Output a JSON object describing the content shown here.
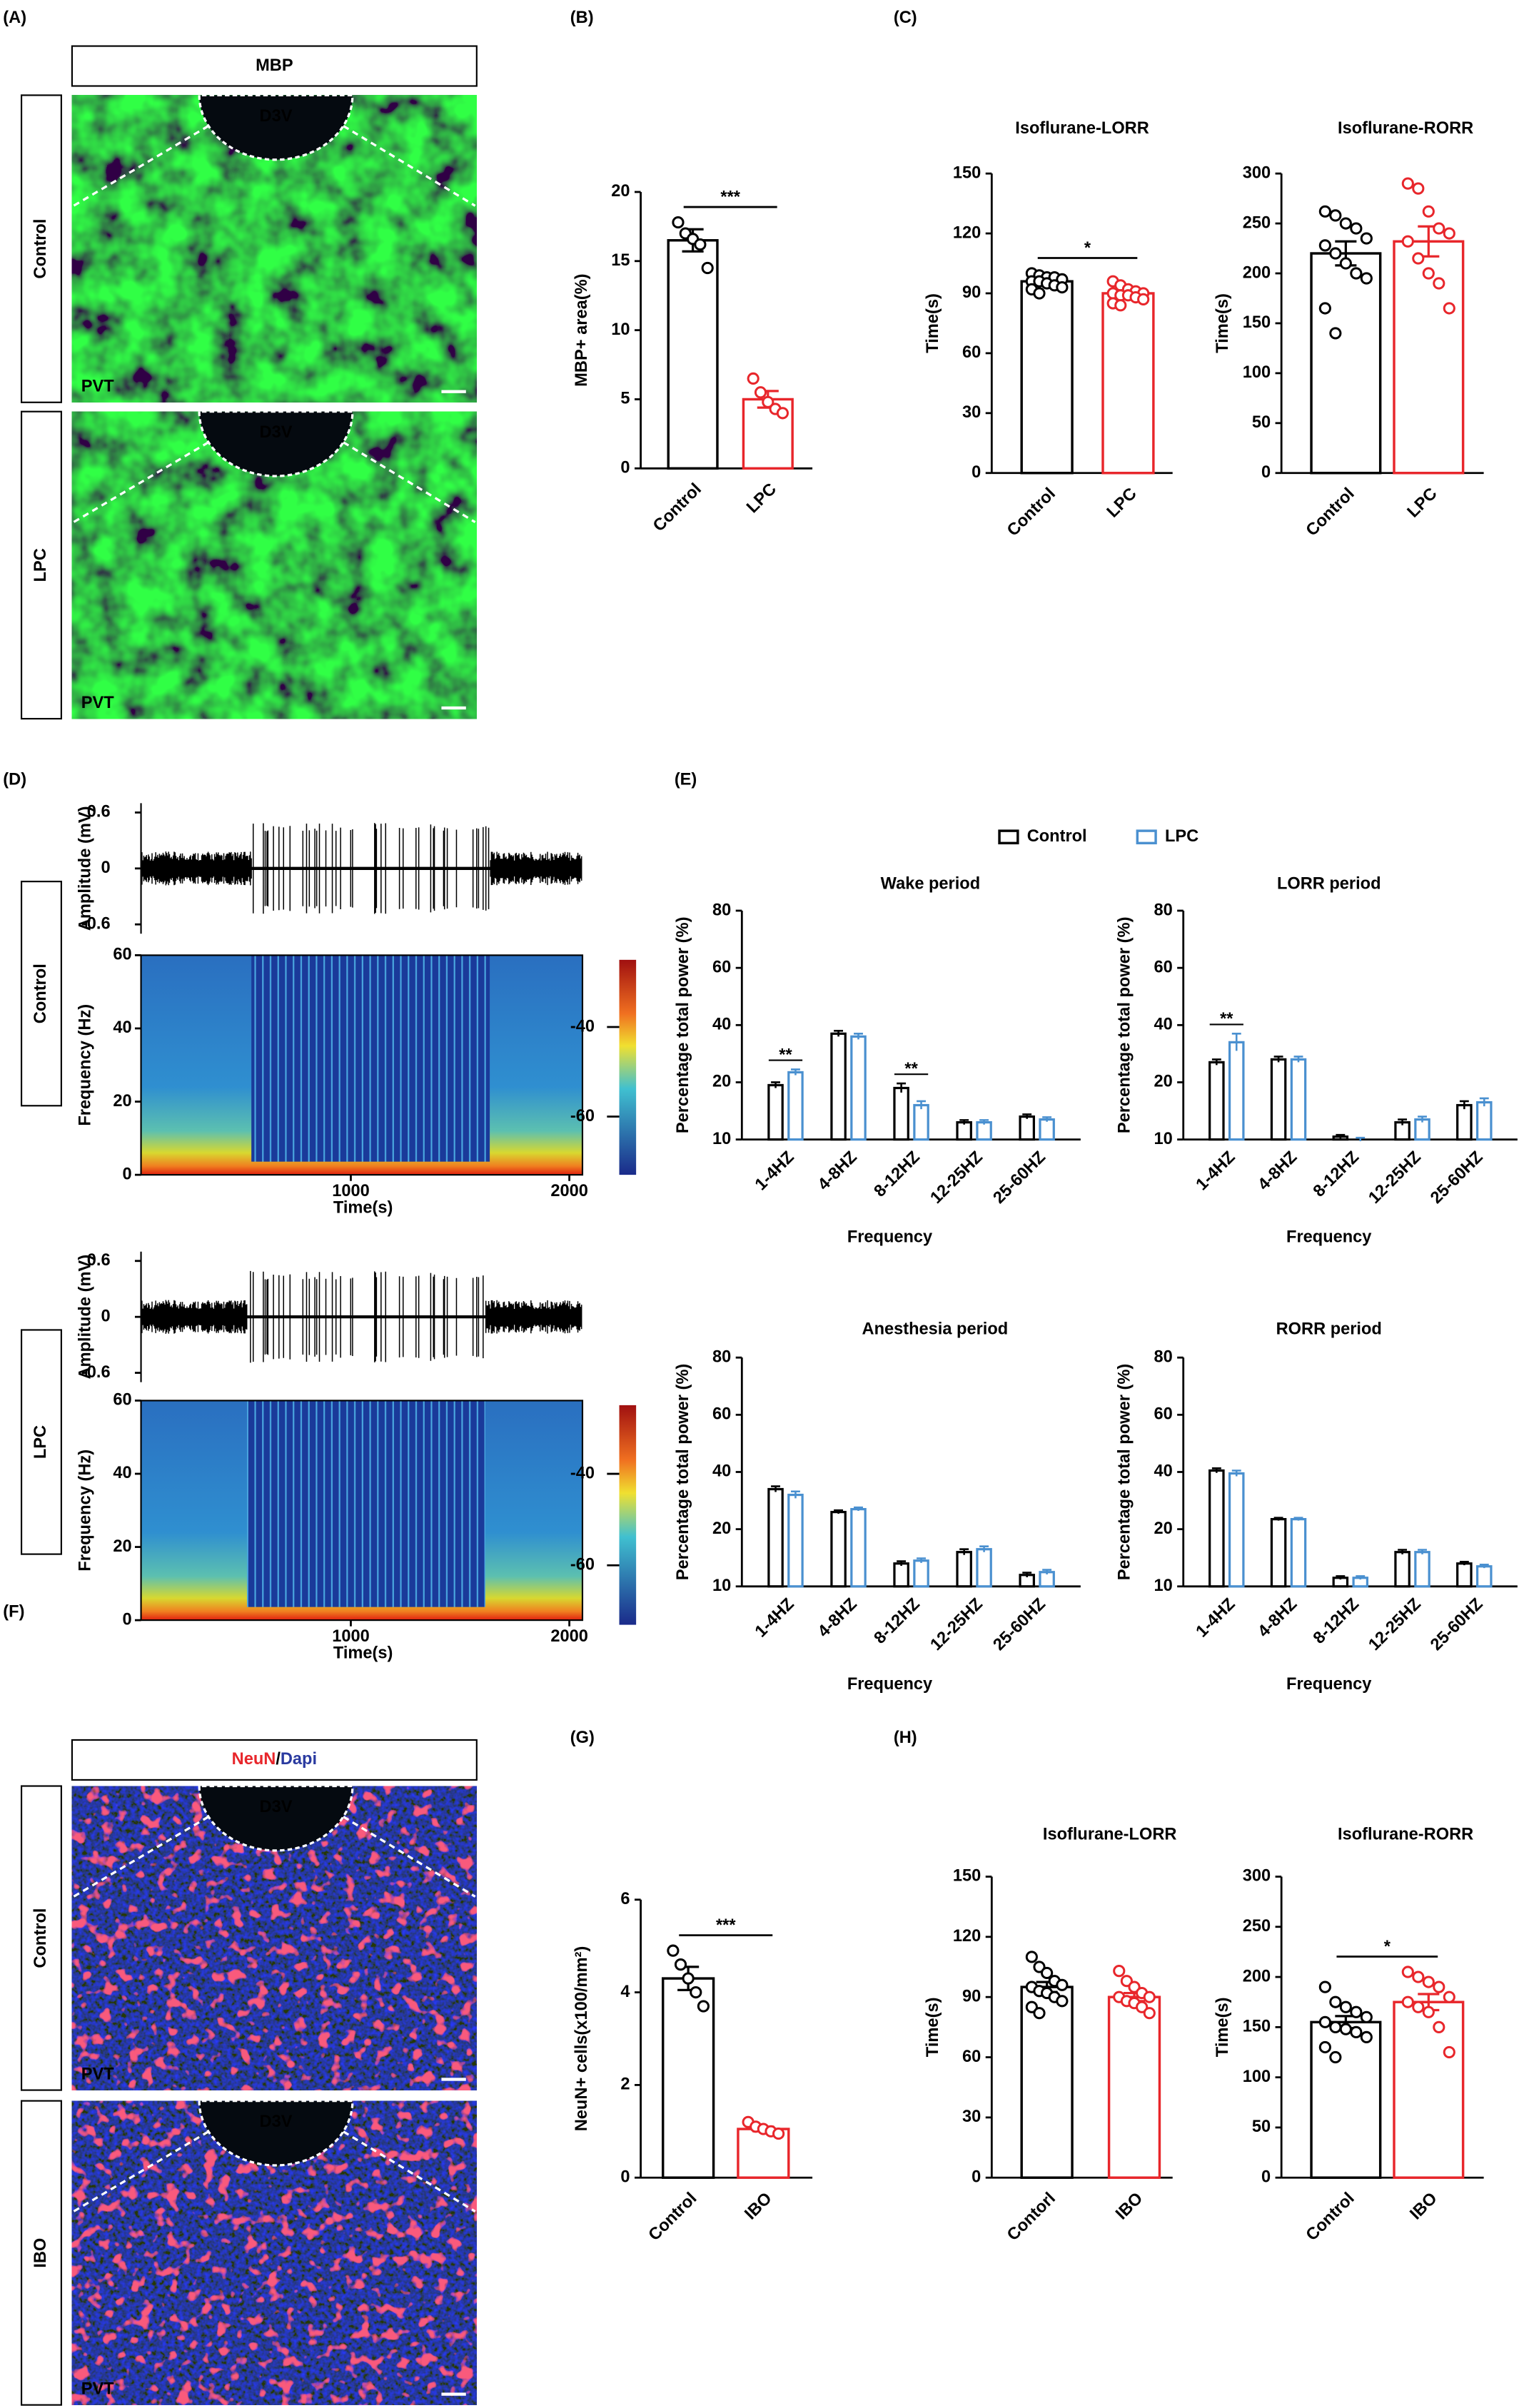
{
  "panel_labels": [
    "(A)",
    "(B)",
    "(C)",
    "(D)",
    "(E)",
    "(F)",
    "(G)",
    "(H)"
  ],
  "images": [
    {
      "header": "MBP",
      "rows": [
        "Control",
        "LPC"
      ],
      "region": "D3V",
      "area": "PVT"
    },
    {
      "header": [
        "NeuN",
        "/",
        "Dapi"
      ],
      "rows": [
        "Control",
        "IBO"
      ],
      "region": "D3V",
      "area": "PVT"
    }
  ],
  "chart_data": [
    {
      "type": "bar",
      "ylabel": "MBP+ area(%)",
      "categories": [
        "Control",
        "LPC"
      ],
      "values": [
        16.5,
        5.0
      ],
      "errors": [
        0.8,
        0.6
      ],
      "colors": [
        "#000000",
        "#e8262b"
      ],
      "points": [
        [
          17.8,
          17.0,
          16.6,
          16.2,
          14.5
        ],
        [
          6.5,
          5.5,
          4.8,
          4.3,
          4.0
        ]
      ],
      "ylim": [
        0,
        20
      ],
      "yticks": [
        0,
        5,
        10,
        15,
        20
      ],
      "annotation": "***"
    },
    {
      "type": "bar",
      "title": "Isoflurane-LORR",
      "ylabel": "Time(s)",
      "categories": [
        "Control",
        "LPC"
      ],
      "values": [
        96,
        90
      ],
      "errors": [
        2,
        2
      ],
      "colors": [
        "#000000",
        "#e8262b"
      ],
      "points": [
        [
          100,
          99,
          98,
          98,
          97,
          96,
          96,
          95,
          94,
          93,
          92,
          90
        ],
        [
          96,
          94,
          92,
          91,
          90,
          90,
          89,
          89,
          88,
          87,
          85,
          84
        ]
      ],
      "ylim": [
        0,
        150
      ],
      "yticks": [
        0,
        30,
        60,
        90,
        120,
        150
      ],
      "annotation": "*"
    },
    {
      "type": "bar",
      "title": "Isoflurane-RORR",
      "ylabel": "Time(s)",
      "categories": [
        "Control",
        "LPC"
      ],
      "values": [
        220,
        232
      ],
      "errors": [
        12,
        15
      ],
      "colors": [
        "#000000",
        "#e8262b"
      ],
      "points": [
        [
          262,
          258,
          250,
          245,
          235,
          228,
          220,
          210,
          200,
          195,
          165,
          140
        ],
        [
          290,
          285,
          262,
          245,
          240,
          232,
          215,
          200,
          190,
          165
        ]
      ],
      "ylim": [
        0,
        300
      ],
      "yticks": [
        0,
        50,
        100,
        150,
        200,
        250,
        300
      ]
    },
    {
      "type": "eeg",
      "group": "Control",
      "amp_label": "Amplitude (mV)",
      "amp_lim": [
        -0.7,
        0.7
      ],
      "amp_ticks": [
        0.6,
        0,
        -0.6
      ],
      "freq_label": "Frequency (Hz)",
      "freq_lim": [
        0,
        60
      ],
      "freq_ticks": [
        0,
        20,
        40,
        60
      ],
      "xlabel": "Time(s)",
      "xlim": [
        40,
        2060
      ],
      "xticks": [
        1000,
        2000
      ],
      "clim": [
        -73,
        -25
      ],
      "color_ticks": [
        -40,
        -60
      ]
    },
    {
      "type": "eeg",
      "group": "LPC",
      "amp_label": "Amplitude (mV)",
      "amp_lim": [
        -0.7,
        0.7
      ],
      "amp_ticks": [
        0.6,
        0,
        -0.6
      ],
      "freq_label": "Frequency (Hz)",
      "freq_lim": [
        0,
        60
      ],
      "freq_ticks": [
        0,
        20,
        40,
        60
      ],
      "xlabel": "Time(s)",
      "xlim": [
        40,
        2060
      ],
      "xticks": [
        1000,
        2000
      ],
      "clim": [
        -73,
        -25
      ],
      "color_ticks": [
        -40,
        -60
      ]
    },
    {
      "type": "grouped_bar",
      "title": "Wake period",
      "ylabel": "Percentage total power (%)",
      "xlabel": "Frequency",
      "legend": "top",
      "categories": [
        "1-4HZ",
        "4-8HZ",
        "8-12HZ",
        "12-25HZ",
        "25-60HZ"
      ],
      "series": [
        {
          "name": "Control",
          "color": "#000000",
          "values": [
            19.5,
            37,
            19,
            13,
            14
          ],
          "errors": [
            0.5,
            1,
            0.8,
            0.4,
            0.4
          ]
        },
        {
          "name": "LPC",
          "color": "#4a90d0",
          "values": [
            23.5,
            36,
            16,
            13,
            13.5
          ],
          "errors": [
            1,
            1,
            0.7,
            0.4,
            0.4
          ]
        }
      ],
      "ylim": [
        10,
        80
      ],
      "yticks": [
        10,
        20,
        40,
        60,
        80
      ],
      "yscale": "segmented",
      "annotations": [
        {
          "category": 0,
          "text": "**"
        },
        {
          "category": 2,
          "text": "**"
        }
      ]
    },
    {
      "type": "grouped_bar",
      "title": "LORR period",
      "ylabel": "Percentage total power (%)",
      "xlabel": "Frequency",
      "categories": [
        "1-4HZ",
        "4-8HZ",
        "8-12HZ",
        "12-25HZ",
        "25-60HZ"
      ],
      "series": [
        {
          "color": "#000000",
          "values": [
            27,
            28,
            10.5,
            13,
            16
          ],
          "errors": [
            1,
            1,
            0.3,
            0.5,
            0.7
          ]
        },
        {
          "color": "#4a90d0",
          "values": [
            34,
            28,
            10,
            13.5,
            16.5
          ],
          "errors": [
            3,
            1,
            0.3,
            0.5,
            0.7
          ]
        }
      ],
      "ylim": [
        10,
        80
      ],
      "yticks": [
        10,
        20,
        40,
        60,
        80
      ],
      "yscale": "segmented",
      "annotations": [
        {
          "category": 0,
          "text": "**"
        }
      ]
    },
    {
      "type": "grouped_bar",
      "title": "Anesthesia period",
      "ylabel": "Percentage total power (%)",
      "xlabel": "Frequency",
      "categories": [
        "1-4HZ",
        "4-8HZ",
        "8-12HZ",
        "12-25HZ",
        "25-60HZ"
      ],
      "series": [
        {
          "color": "#000000",
          "values": [
            34,
            26,
            14,
            16,
            12
          ],
          "errors": [
            1,
            0.6,
            0.4,
            0.5,
            0.4
          ]
        },
        {
          "color": "#4a90d0",
          "values": [
            32,
            27,
            14.5,
            16.5,
            12.5
          ],
          "errors": [
            1.2,
            0.6,
            0.4,
            0.5,
            0.4
          ]
        }
      ],
      "ylim": [
        10,
        80
      ],
      "yticks": [
        10,
        20,
        40,
        60,
        80
      ],
      "yscale": "segmented"
    },
    {
      "type": "grouped_bar",
      "title": "RORR period",
      "ylabel": "Percentage total power (%)",
      "xlabel": "Frequency",
      "categories": [
        "1-4HZ",
        "4-8HZ",
        "8-12HZ",
        "12-25HZ",
        "25-60HZ"
      ],
      "series": [
        {
          "color": "#000000",
          "values": [
            40.5,
            23.5,
            11.5,
            16,
            14
          ],
          "errors": [
            0.8,
            0.5,
            0.3,
            0.4,
            0.3
          ]
        },
        {
          "color": "#4a90d0",
          "values": [
            39.5,
            23.5,
            11.5,
            16,
            13.5
          ],
          "errors": [
            1,
            0.5,
            0.3,
            0.4,
            0.3
          ]
        }
      ],
      "ylim": [
        10,
        80
      ],
      "yticks": [
        10,
        20,
        40,
        60,
        80
      ],
      "yscale": "segmented"
    },
    {
      "type": "bar",
      "ylabel": "NeuN+ cells(x100/mm²)",
      "categories": [
        "Control",
        "IBO"
      ],
      "values": [
        4.3,
        1.05
      ],
      "errors": [
        0.25,
        0.05
      ],
      "colors": [
        "#000000",
        "#e8262b"
      ],
      "points": [
        [
          4.9,
          4.6,
          4.3,
          4.0,
          3.7
        ],
        [
          1.2,
          1.1,
          1.05,
          1.0,
          0.95
        ]
      ],
      "ylim": [
        0,
        6
      ],
      "yticks": [
        0,
        2,
        4,
        6
      ],
      "annotation": "***"
    },
    {
      "type": "bar",
      "title": "Isoflurane-LORR",
      "ylabel": "Time(s)",
      "categories": [
        "Contorl",
        "IBO"
      ],
      "values": [
        95,
        90
      ],
      "errors": [
        2.5,
        2
      ],
      "colors": [
        "#000000",
        "#e8262b"
      ],
      "points": [
        [
          110,
          105,
          102,
          98,
          96,
          95,
          93,
          92,
          90,
          88,
          85,
          82
        ],
        [
          103,
          98,
          95,
          92,
          90,
          90,
          88,
          87,
          85,
          82
        ]
      ],
      "ylim": [
        0,
        150
      ],
      "yticks": [
        0,
        30,
        60,
        90,
        120,
        150
      ]
    },
    {
      "type": "bar",
      "title": "Isoflurane-RORR",
      "ylabel": "Time(s)",
      "categories": [
        "Control",
        "IBO"
      ],
      "values": [
        155,
        175
      ],
      "errors": [
        6,
        8
      ],
      "colors": [
        "#000000",
        "#e8262b"
      ],
      "points": [
        [
          190,
          175,
          170,
          165,
          160,
          155,
          150,
          148,
          145,
          140,
          130,
          120
        ],
        [
          205,
          200,
          195,
          190,
          180,
          175,
          170,
          165,
          150,
          125
        ]
      ],
      "ylim": [
        0,
        300
      ],
      "yticks": [
        0,
        50,
        100,
        150,
        200,
        250,
        300
      ],
      "annotation": "*"
    }
  ]
}
